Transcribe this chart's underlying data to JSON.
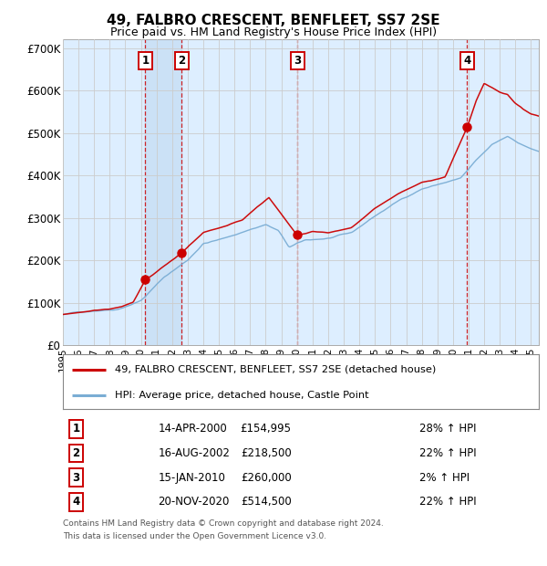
{
  "title1": "49, FALBRO CRESCENT, BENFLEET, SS7 2SE",
  "title2": "Price paid vs. HM Land Registry's House Price Index (HPI)",
  "ylabel_vals": [
    0,
    100000,
    200000,
    300000,
    400000,
    500000,
    600000,
    700000
  ],
  "ylabel_labels": [
    "£0",
    "£100K",
    "£200K",
    "£300K",
    "£400K",
    "£500K",
    "£600K",
    "£700K"
  ],
  "xlim_start": 1995.0,
  "xlim_end": 2025.5,
  "ylim": [
    0,
    720000
  ],
  "transactions": [
    {
      "num": 1,
      "date": "14-APR-2000",
      "price": 154995,
      "pct": "28%",
      "x": 2000.28
    },
    {
      "num": 2,
      "date": "16-AUG-2002",
      "price": 218500,
      "pct": "22%",
      "x": 2002.62
    },
    {
      "num": 3,
      "date": "15-JAN-2010",
      "price": 260000,
      "pct": "2%",
      "x": 2010.04
    },
    {
      "num": 4,
      "date": "20-NOV-2020",
      "price": 514500,
      "pct": "22%",
      "x": 2020.89
    }
  ],
  "legend_line1": "49, FALBRO CRESCENT, BENFLEET, SS7 2SE (detached house)",
  "legend_line2": "HPI: Average price, detached house, Castle Point",
  "footer1": "Contains HM Land Registry data © Crown copyright and database right 2024.",
  "footer2": "This data is licensed under the Open Government Licence v3.0.",
  "red_color": "#cc0000",
  "blue_color": "#7aadd4",
  "bg_color": "#ddeeff",
  "shade_color": "#c8dff5",
  "grid_color": "#cccccc",
  "vline_color": "#cc0000"
}
